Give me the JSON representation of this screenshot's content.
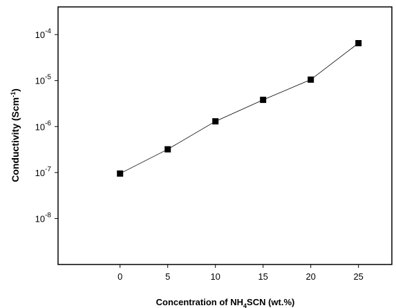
{
  "chart_data": {
    "type": "line",
    "title": "",
    "xlabel": "Concentration of NH4SCN (wt.%)",
    "xlabel_parts": {
      "pre": "Concentration of NH",
      "sub": "4",
      "post": "SCN (wt.%)"
    },
    "ylabel": "Conductivity (Scm-1)",
    "ylabel_parts": {
      "pre": "Conductivity (Scm",
      "sup": "-1",
      "post": ")"
    },
    "x_scale": "linear",
    "y_scale": "log",
    "xlim": [
      -6.5,
      28.5
    ],
    "ylim": [
      1e-09,
      0.0004
    ],
    "x_ticks": [
      0,
      5,
      10,
      15,
      20,
      25
    ],
    "x_tick_labels": [
      "0",
      "5",
      "10",
      "15",
      "20",
      "25"
    ],
    "y_ticks": [
      {
        "value": 1e-08,
        "base": "10",
        "exp": "-8"
      },
      {
        "value": 1e-07,
        "base": "10",
        "exp": "-7"
      },
      {
        "value": 1e-06,
        "base": "10",
        "exp": "-6"
      },
      {
        "value": 1e-05,
        "base": "10",
        "exp": "-5"
      },
      {
        "value": 0.0001,
        "base": "10",
        "exp": "-4"
      }
    ],
    "x": [
      0,
      5,
      10,
      15,
      20,
      25
    ],
    "series": [
      {
        "values": [
          9.5e-08,
          3.2e-07,
          1.3e-06,
          3.8e-06,
          1.05e-05,
          6.5e-05
        ],
        "color": "#000000",
        "marker": "square"
      }
    ],
    "grid": false,
    "legend": "none"
  }
}
